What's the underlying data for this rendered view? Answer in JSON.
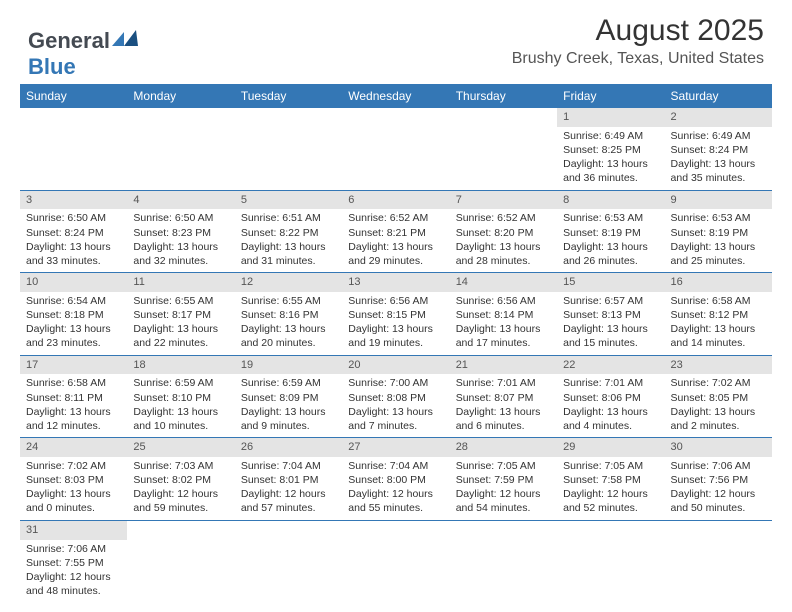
{
  "logo": {
    "text1": "General",
    "text2": "Blue"
  },
  "title": "August 2025",
  "location": "Brushy Creek, Texas, United States",
  "colors": {
    "header_bg": "#3477b5",
    "header_text": "#ffffff",
    "daynum_bg": "#e4e4e4",
    "border": "#3477b5",
    "logo_gray": "#444a52",
    "logo_blue": "#3477b5",
    "body_bg": "#ffffff"
  },
  "typography": {
    "title_fontsize": 30,
    "location_fontsize": 16,
    "dayheader_fontsize": 12,
    "cell_fontsize": 10.5
  },
  "day_headers": [
    "Sunday",
    "Monday",
    "Tuesday",
    "Wednesday",
    "Thursday",
    "Friday",
    "Saturday"
  ],
  "weeks": [
    [
      null,
      null,
      null,
      null,
      null,
      {
        "n": "1",
        "sr": "Sunrise: 6:49 AM",
        "ss": "Sunset: 8:25 PM",
        "dl": "Daylight: 13 hours and 36 minutes."
      },
      {
        "n": "2",
        "sr": "Sunrise: 6:49 AM",
        "ss": "Sunset: 8:24 PM",
        "dl": "Daylight: 13 hours and 35 minutes."
      }
    ],
    [
      {
        "n": "3",
        "sr": "Sunrise: 6:50 AM",
        "ss": "Sunset: 8:24 PM",
        "dl": "Daylight: 13 hours and 33 minutes."
      },
      {
        "n": "4",
        "sr": "Sunrise: 6:50 AM",
        "ss": "Sunset: 8:23 PM",
        "dl": "Daylight: 13 hours and 32 minutes."
      },
      {
        "n": "5",
        "sr": "Sunrise: 6:51 AM",
        "ss": "Sunset: 8:22 PM",
        "dl": "Daylight: 13 hours and 31 minutes."
      },
      {
        "n": "6",
        "sr": "Sunrise: 6:52 AM",
        "ss": "Sunset: 8:21 PM",
        "dl": "Daylight: 13 hours and 29 minutes."
      },
      {
        "n": "7",
        "sr": "Sunrise: 6:52 AM",
        "ss": "Sunset: 8:20 PM",
        "dl": "Daylight: 13 hours and 28 minutes."
      },
      {
        "n": "8",
        "sr": "Sunrise: 6:53 AM",
        "ss": "Sunset: 8:19 PM",
        "dl": "Daylight: 13 hours and 26 minutes."
      },
      {
        "n": "9",
        "sr": "Sunrise: 6:53 AM",
        "ss": "Sunset: 8:19 PM",
        "dl": "Daylight: 13 hours and 25 minutes."
      }
    ],
    [
      {
        "n": "10",
        "sr": "Sunrise: 6:54 AM",
        "ss": "Sunset: 8:18 PM",
        "dl": "Daylight: 13 hours and 23 minutes."
      },
      {
        "n": "11",
        "sr": "Sunrise: 6:55 AM",
        "ss": "Sunset: 8:17 PM",
        "dl": "Daylight: 13 hours and 22 minutes."
      },
      {
        "n": "12",
        "sr": "Sunrise: 6:55 AM",
        "ss": "Sunset: 8:16 PM",
        "dl": "Daylight: 13 hours and 20 minutes."
      },
      {
        "n": "13",
        "sr": "Sunrise: 6:56 AM",
        "ss": "Sunset: 8:15 PM",
        "dl": "Daylight: 13 hours and 19 minutes."
      },
      {
        "n": "14",
        "sr": "Sunrise: 6:56 AM",
        "ss": "Sunset: 8:14 PM",
        "dl": "Daylight: 13 hours and 17 minutes."
      },
      {
        "n": "15",
        "sr": "Sunrise: 6:57 AM",
        "ss": "Sunset: 8:13 PM",
        "dl": "Daylight: 13 hours and 15 minutes."
      },
      {
        "n": "16",
        "sr": "Sunrise: 6:58 AM",
        "ss": "Sunset: 8:12 PM",
        "dl": "Daylight: 13 hours and 14 minutes."
      }
    ],
    [
      {
        "n": "17",
        "sr": "Sunrise: 6:58 AM",
        "ss": "Sunset: 8:11 PM",
        "dl": "Daylight: 13 hours and 12 minutes."
      },
      {
        "n": "18",
        "sr": "Sunrise: 6:59 AM",
        "ss": "Sunset: 8:10 PM",
        "dl": "Daylight: 13 hours and 10 minutes."
      },
      {
        "n": "19",
        "sr": "Sunrise: 6:59 AM",
        "ss": "Sunset: 8:09 PM",
        "dl": "Daylight: 13 hours and 9 minutes."
      },
      {
        "n": "20",
        "sr": "Sunrise: 7:00 AM",
        "ss": "Sunset: 8:08 PM",
        "dl": "Daylight: 13 hours and 7 minutes."
      },
      {
        "n": "21",
        "sr": "Sunrise: 7:01 AM",
        "ss": "Sunset: 8:07 PM",
        "dl": "Daylight: 13 hours and 6 minutes."
      },
      {
        "n": "22",
        "sr": "Sunrise: 7:01 AM",
        "ss": "Sunset: 8:06 PM",
        "dl": "Daylight: 13 hours and 4 minutes."
      },
      {
        "n": "23",
        "sr": "Sunrise: 7:02 AM",
        "ss": "Sunset: 8:05 PM",
        "dl": "Daylight: 13 hours and 2 minutes."
      }
    ],
    [
      {
        "n": "24",
        "sr": "Sunrise: 7:02 AM",
        "ss": "Sunset: 8:03 PM",
        "dl": "Daylight: 13 hours and 0 minutes."
      },
      {
        "n": "25",
        "sr": "Sunrise: 7:03 AM",
        "ss": "Sunset: 8:02 PM",
        "dl": "Daylight: 12 hours and 59 minutes."
      },
      {
        "n": "26",
        "sr": "Sunrise: 7:04 AM",
        "ss": "Sunset: 8:01 PM",
        "dl": "Daylight: 12 hours and 57 minutes."
      },
      {
        "n": "27",
        "sr": "Sunrise: 7:04 AM",
        "ss": "Sunset: 8:00 PM",
        "dl": "Daylight: 12 hours and 55 minutes."
      },
      {
        "n": "28",
        "sr": "Sunrise: 7:05 AM",
        "ss": "Sunset: 7:59 PM",
        "dl": "Daylight: 12 hours and 54 minutes."
      },
      {
        "n": "29",
        "sr": "Sunrise: 7:05 AM",
        "ss": "Sunset: 7:58 PM",
        "dl": "Daylight: 12 hours and 52 minutes."
      },
      {
        "n": "30",
        "sr": "Sunrise: 7:06 AM",
        "ss": "Sunset: 7:56 PM",
        "dl": "Daylight: 12 hours and 50 minutes."
      }
    ],
    [
      {
        "n": "31",
        "sr": "Sunrise: 7:06 AM",
        "ss": "Sunset: 7:55 PM",
        "dl": "Daylight: 12 hours and 48 minutes."
      },
      null,
      null,
      null,
      null,
      null,
      null
    ]
  ]
}
